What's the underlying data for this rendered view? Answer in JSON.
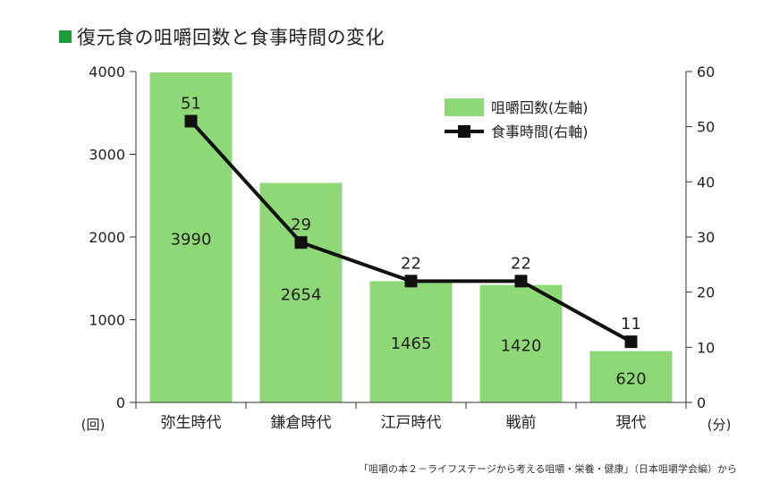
{
  "title": "復元食の咀嚼回数と食事時間の変化",
  "source": "「咀嚼の本２－ライフステージから考える咀嚼・栄養・健康」（日本咀嚼学会編）から",
  "colors": {
    "bar": "#8fd877",
    "line": "#111111",
    "title_square": "#1a9c3a",
    "axis": "#333333"
  },
  "chart_data": {
    "type": "bar+line",
    "categories": [
      "弥生時代",
      "鎌倉時代",
      "江戸時代",
      "戦前",
      "現代"
    ],
    "series": [
      {
        "name": "咀嚼回数(左軸)",
        "axis": "left",
        "type": "bar",
        "values": [
          3990,
          2654,
          1465,
          1420,
          620
        ],
        "labels": [
          "3990",
          "2654",
          "1465",
          "1420",
          "620"
        ]
      },
      {
        "name": "食事時間(右軸)",
        "axis": "right",
        "type": "line",
        "values": [
          51,
          29,
          22,
          22,
          11
        ],
        "labels": [
          "51",
          "29",
          "22",
          "22",
          "11"
        ]
      }
    ],
    "left_axis": {
      "range": [
        0,
        4000
      ],
      "ticks": [
        "0",
        "1000",
        "2000",
        "3000",
        "4000"
      ],
      "unit": "(回)"
    },
    "right_axis": {
      "range": [
        0,
        60
      ],
      "ticks": [
        "0",
        "10",
        "20",
        "30",
        "40",
        "50",
        "60"
      ],
      "unit": "(分)"
    },
    "legend": {
      "position": "top-right",
      "items": [
        "咀嚼回数(左軸)",
        "食事時間(右軸)"
      ]
    }
  }
}
